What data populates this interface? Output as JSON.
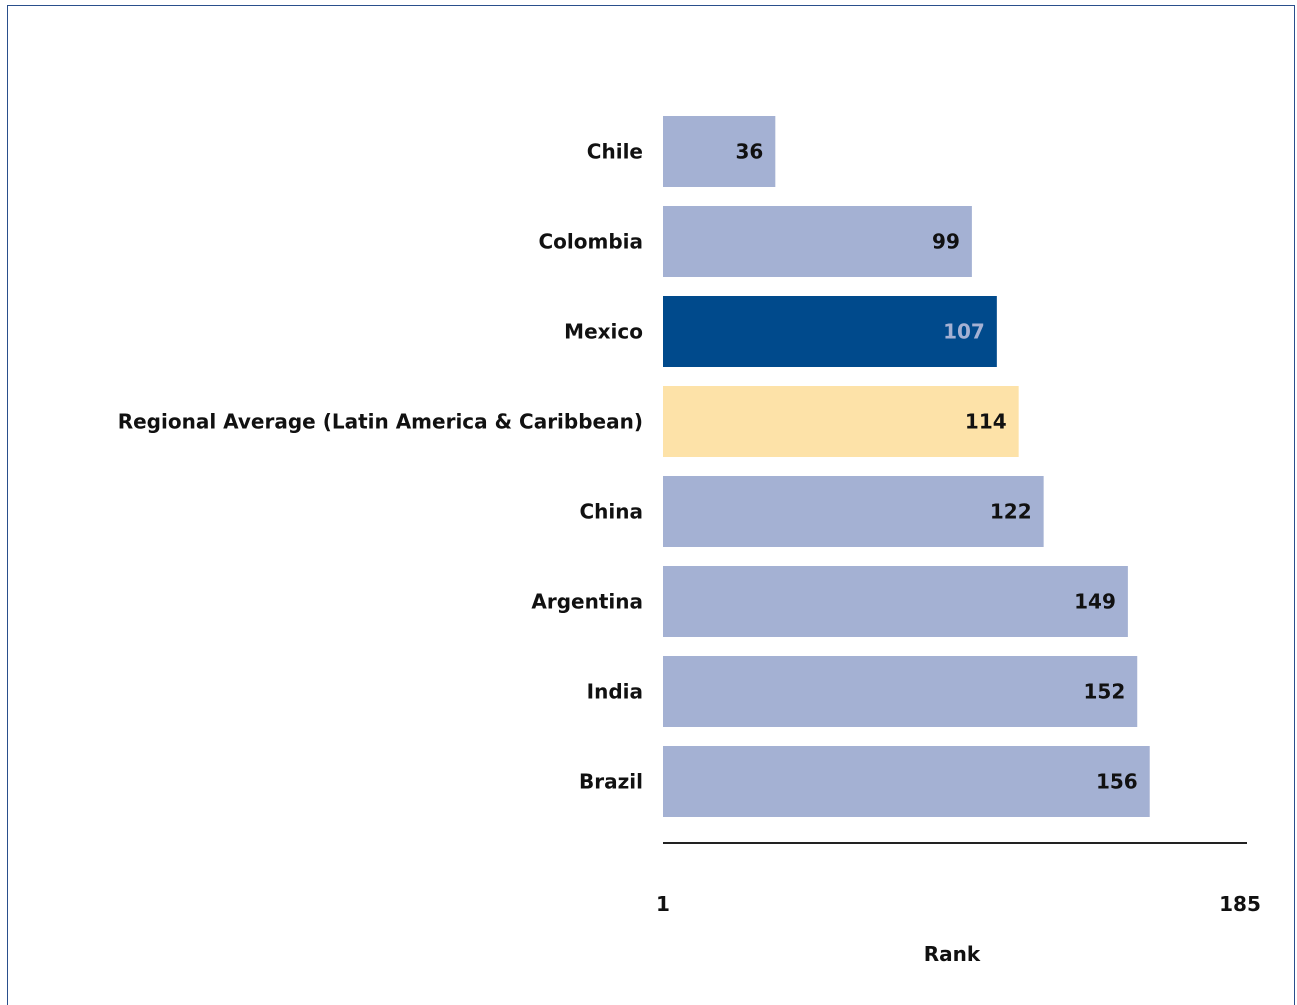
{
  "chart_data": {
    "type": "bar",
    "orientation": "horizontal",
    "categories": [
      "Chile",
      "Colombia",
      "Mexico",
      "Regional Average (Latin America & Caribbean)",
      "China",
      "Argentina",
      "India",
      "Brazil"
    ],
    "values": [
      36,
      99,
      107,
      114,
      122,
      149,
      152,
      156
    ],
    "bar_colors": [
      "#a4b1d3",
      "#a4b1d3",
      "#004a8c",
      "#fde2a8",
      "#a4b1d3",
      "#a4b1d3",
      "#a4b1d3",
      "#a4b1d3"
    ],
    "value_label_colors": [
      "#111111",
      "#111111",
      "#a4b1d3",
      "#111111",
      "#111111",
      "#111111",
      "#111111",
      "#111111"
    ],
    "xlim": [
      1,
      185
    ],
    "tick_labels": [
      "1",
      "185"
    ],
    "xlabel": "Rank",
    "ylabel": "",
    "title": "",
    "grid": false,
    "legend": "none"
  }
}
